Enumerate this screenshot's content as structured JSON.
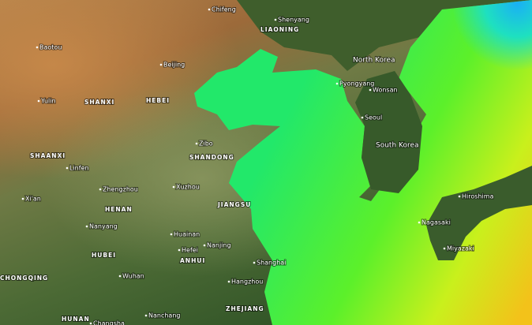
{
  "labels": [
    "Chifeng",
    "Shenyang",
    "LIAONING",
    "Baotou",
    "Beijing",
    "North Korea",
    "Pyongyang",
    "Wonsan",
    "Yulin",
    "SHANXI",
    "HEBEI",
    "Seoul",
    "South Korea",
    "Zibo",
    "SHAANXI",
    "SHANDONG",
    "Linfen",
    "Zhengzhou",
    "Xuzhou",
    "JIANGSU",
    "Xi'an",
    "HENAN",
    "Hiroshima",
    "Nanyang",
    "Huainan",
    "Nagasaki",
    "HUBEI",
    "Hefei",
    "Nanjing",
    "Miyazaki",
    "ANHUI",
    "Shanghai",
    "Wuhan",
    "CHONGQING",
    "Hangzhou",
    "ZHEJIANG",
    "Nanchang",
    "HUNAN",
    "Changsha"
  ]
}
